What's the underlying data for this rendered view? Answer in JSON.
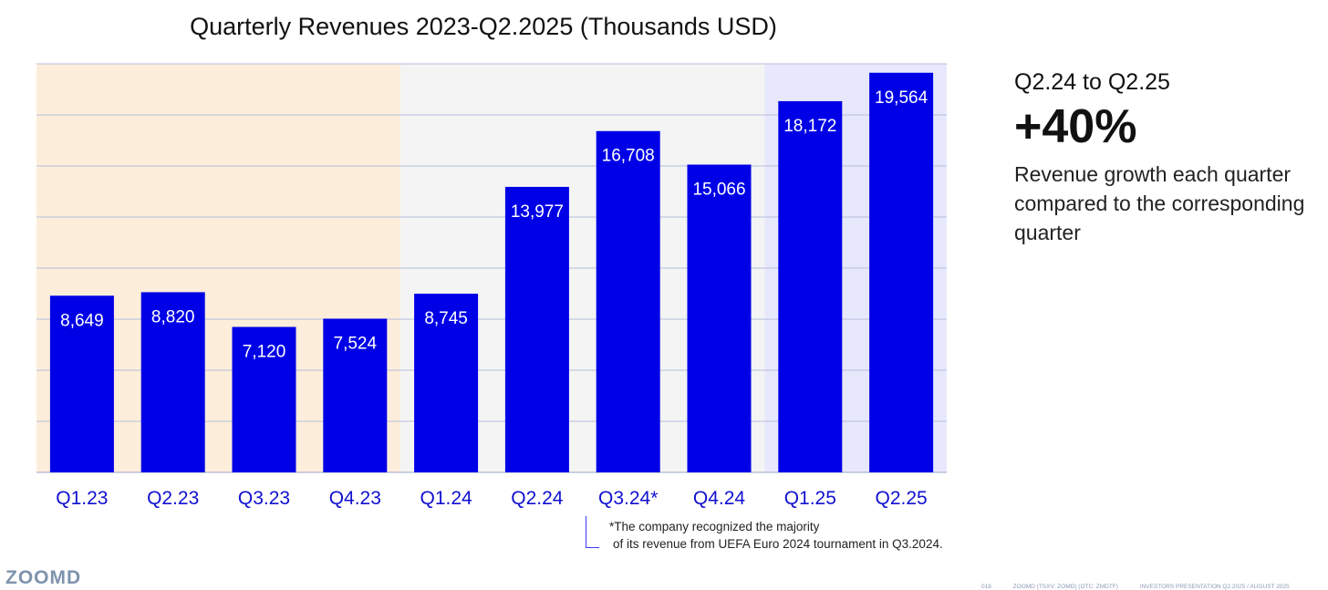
{
  "chart_data": {
    "type": "bar",
    "title": "Quarterly Revenues 2023-Q2.2025 (Thousands USD)",
    "categories": [
      "Q1.23",
      "Q2.23",
      "Q3.23",
      "Q4.23",
      "Q1.24",
      "Q2.24",
      "Q3.24*",
      "Q4.24",
      "Q1.25",
      "Q2.25"
    ],
    "values": [
      8649,
      8820,
      7120,
      7524,
      8745,
      13977,
      16708,
      15066,
      18172,
      19564
    ],
    "value_labels": [
      "8,649",
      "8,820",
      "7,120",
      "7,524",
      "8,745",
      "13,977",
      "16,708",
      "15,066",
      "18,172",
      "19,564"
    ],
    "ylim": [
      0,
      20000
    ],
    "grid": true,
    "bar_color": "#0000e6",
    "label_color": "#ffffff",
    "tick_color": "#1010d0",
    "background_bands": [
      {
        "from": "Q1.23",
        "to": "Q4.23",
        "color": "#fdeedc"
      },
      {
        "from": "Q1.24",
        "to": "Q4.24",
        "color": "#f4f4f4"
      },
      {
        "from": "Q1.25",
        "to": "Q2.25",
        "color": "#e8e8fc"
      }
    ]
  },
  "side": {
    "subtitle": "Q2.24 to Q2.25",
    "headline": "+40%",
    "description": "Revenue growth each quarter compared to the corresponding quarter"
  },
  "footnote": {
    "line1": "*The company recognized the majority",
    "line2": "of its revenue from UEFA Euro 2024 tournament in Q3.2024."
  },
  "brand": {
    "logo": "ZOOMD"
  },
  "footer": {
    "page": "018",
    "company": "ZOOMD (TSXV: ZOMD) (OTC: ZMDTF)",
    "presentation": "INVESTORS PRESENTATION Q2.2025 / AUGUST 2025"
  }
}
